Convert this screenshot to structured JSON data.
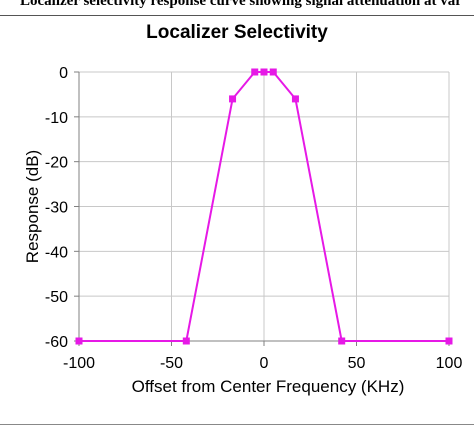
{
  "page": {
    "top_caption": "Localizer selectivity response curve showing signal attenuation at various frequency offsets."
  },
  "chart_data": {
    "type": "line",
    "title": "Localizer Selectivity",
    "xlabel": "Offset from Center Frequency (KHz)",
    "ylabel": "Response (dB)",
    "xlim": [
      -100,
      100
    ],
    "ylim": [
      -60,
      0
    ],
    "xticks": [
      -100,
      -50,
      0,
      50,
      100
    ],
    "yticks": [
      0,
      -10,
      -20,
      -30,
      -40,
      -50,
      -60
    ],
    "grid": true,
    "series": [
      {
        "color": "#e619e6",
        "marker": "square",
        "x": [
          -100,
          -42,
          -17,
          -5,
          0,
          5,
          17,
          42,
          100
        ],
        "y": [
          -60,
          -60,
          -6,
          0,
          0,
          0,
          -6,
          -60,
          -60
        ]
      }
    ]
  }
}
